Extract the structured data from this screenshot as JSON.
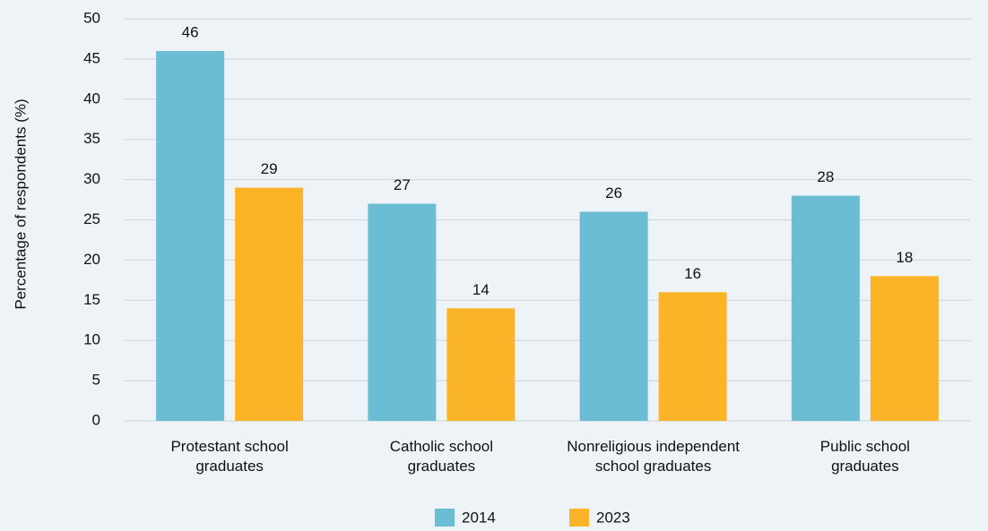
{
  "chart_data": {
    "type": "bar",
    "ylabel": "Percentage of respondents (%)",
    "categories": [
      [
        "Protestant school",
        "graduates"
      ],
      [
        "Catholic school",
        "graduates"
      ],
      [
        "Nonreligious independent",
        "school graduates"
      ],
      [
        "Public school",
        "graduates"
      ]
    ],
    "series": [
      {
        "name": "2014",
        "color": "#6bbdd3",
        "values": [
          46,
          27,
          26,
          28
        ]
      },
      {
        "name": "2023",
        "color": "#fbb427",
        "values": [
          29,
          14,
          16,
          18
        ]
      }
    ],
    "ylim": [
      0,
      50
    ],
    "yticks": [
      0,
      5,
      10,
      15,
      20,
      25,
      30,
      35,
      40,
      45,
      50
    ],
    "grid": true,
    "legend": "bottom"
  }
}
